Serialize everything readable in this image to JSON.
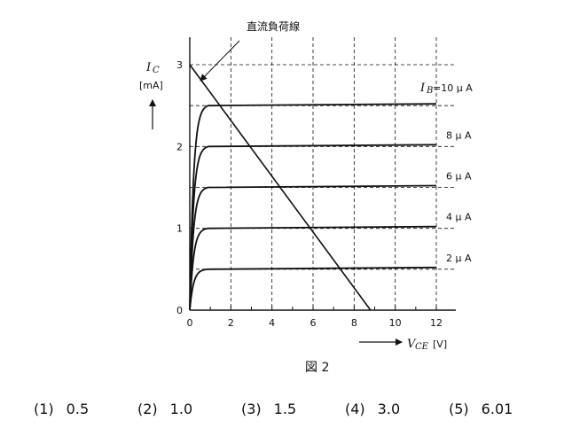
{
  "figure": {
    "annotation": "直流負荷線",
    "y_axis_symbol": "I",
    "y_axis_subscript": "C",
    "y_axis_unit": "[mA]",
    "x_axis_symbol": "V",
    "x_axis_subscript": "CE",
    "x_axis_unit": "[V]",
    "caption": "図 2",
    "curve_labels": [
      {
        "prefix": "I",
        "sub": "B",
        "text": " =10 μ A",
        "ib": 10,
        "ic": 2.5
      },
      {
        "prefix": "",
        "sub": "",
        "text": "8 μ A",
        "ib": 8,
        "ic": 2.0
      },
      {
        "prefix": "",
        "sub": "",
        "text": "6 μ A",
        "ib": 6,
        "ic": 1.5
      },
      {
        "prefix": "",
        "sub": "",
        "text": "4 μ A",
        "ib": 4,
        "ic": 1.0
      },
      {
        "prefix": "",
        "sub": "",
        "text": "2 μ A",
        "ib": 2,
        "ic": 0.5
      }
    ]
  },
  "chart_data": {
    "type": "line",
    "x_ticks": [
      "0",
      "2",
      "4",
      "6",
      "8",
      "10",
      "12"
    ],
    "y_ticks": [
      "0",
      "1",
      "2",
      "3"
    ],
    "xlim": [
      0,
      12
    ],
    "ylim": [
      0,
      3
    ],
    "grid": true,
    "load_line": {
      "label": "直流負荷線",
      "points": [
        [
          0,
          3
        ],
        [
          8.8,
          0
        ]
      ]
    },
    "series": [
      {
        "name": "10 μA",
        "ic_level": 2.5
      },
      {
        "name": "8 μA",
        "ic_level": 2.0
      },
      {
        "name": "6 μA",
        "ic_level": 1.5
      },
      {
        "name": "4 μA",
        "ic_level": 1.0
      },
      {
        "name": "2 μA",
        "ic_level": 0.5
      }
    ]
  },
  "choices": [
    {
      "num": "(1)",
      "value": "0.5"
    },
    {
      "num": "(2)",
      "value": "1.0"
    },
    {
      "num": "(3)",
      "value": "1.5"
    },
    {
      "num": "(4)",
      "value": "3.0"
    },
    {
      "num": "(5)",
      "value": "6.01"
    }
  ]
}
